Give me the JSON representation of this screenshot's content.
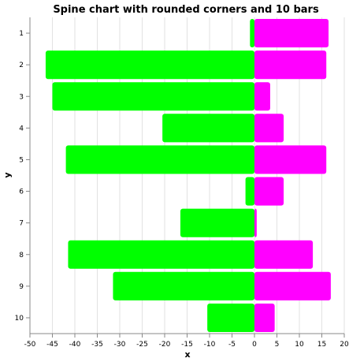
{
  "chart_data": {
    "type": "bar",
    "orientation": "horizontal",
    "title": "Spine chart with rounded corners and 10 bars",
    "xlabel": "x",
    "ylabel": "y",
    "xlim": [
      -50,
      20
    ],
    "x_ticks": [
      -50,
      -45,
      -40,
      -35,
      -30,
      -25,
      -20,
      -15,
      -10,
      -5,
      0,
      5,
      10,
      15,
      20
    ],
    "categories": [
      "1",
      "2",
      "3",
      "4",
      "5",
      "6",
      "7",
      "8",
      "9",
      "10"
    ],
    "series": [
      {
        "color": "#00ff00",
        "values": [
          -1,
          -46.5,
          -45,
          -20.5,
          -42,
          -2,
          -16.5,
          -41.5,
          -31.5,
          -10.5
        ]
      },
      {
        "color": "#ff00ff",
        "values": [
          16.5,
          16,
          3.5,
          6.5,
          16,
          6.5,
          0.5,
          13,
          17,
          4.5
        ]
      }
    ],
    "grid": true,
    "legend": "none"
  }
}
